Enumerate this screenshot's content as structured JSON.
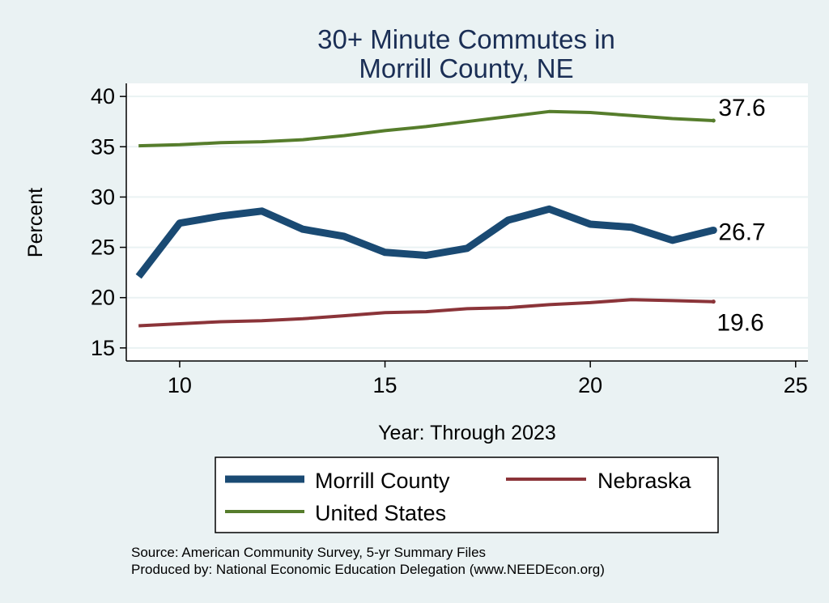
{
  "chart_data": {
    "type": "line",
    "title": [
      "30+ Minute Commutes in",
      "Morrill County, NE"
    ],
    "xlabel": "Year: Through 2023",
    "ylabel": "Percent",
    "xlim": [
      8.7,
      25.3
    ],
    "ylim": [
      13.7,
      41.3
    ],
    "xticks": [
      10,
      15,
      20,
      25
    ],
    "yticks": [
      15,
      20,
      25,
      30,
      35,
      40
    ],
    "x": [
      9,
      10,
      11,
      12,
      13,
      14,
      15,
      16,
      17,
      18,
      19,
      20,
      21,
      22,
      23
    ],
    "series": [
      {
        "name": "Morrill County",
        "color": "#1a4a73",
        "width": 9,
        "values": [
          22.1,
          27.4,
          28.1,
          28.6,
          26.8,
          26.1,
          24.5,
          24.2,
          24.9,
          27.7,
          28.8,
          27.3,
          27.0,
          25.7,
          26.7
        ],
        "end_label": "26.7"
      },
      {
        "name": "Nebraska",
        "color": "#8b3439",
        "width": 4,
        "values": [
          17.2,
          17.4,
          17.6,
          17.7,
          17.9,
          18.2,
          18.5,
          18.6,
          18.9,
          19.0,
          19.3,
          19.5,
          19.8,
          19.7,
          19.6
        ],
        "end_label": "19.6"
      },
      {
        "name": "United States",
        "color": "#567d2c",
        "width": 4,
        "values": [
          35.1,
          35.2,
          35.4,
          35.5,
          35.7,
          36.1,
          36.6,
          37.0,
          37.5,
          38.0,
          38.5,
          38.4,
          38.1,
          37.8,
          37.6
        ],
        "end_label": "37.6"
      }
    ],
    "legend": {
      "position": "bottom",
      "entries": [
        "Morrill County",
        "Nebraska",
        "United States"
      ]
    },
    "notes": [
      "Source: American Community Survey, 5-yr Summary Files",
      "Produced by: National Economic Education Delegation (www.NEEDEcon.org)"
    ]
  }
}
